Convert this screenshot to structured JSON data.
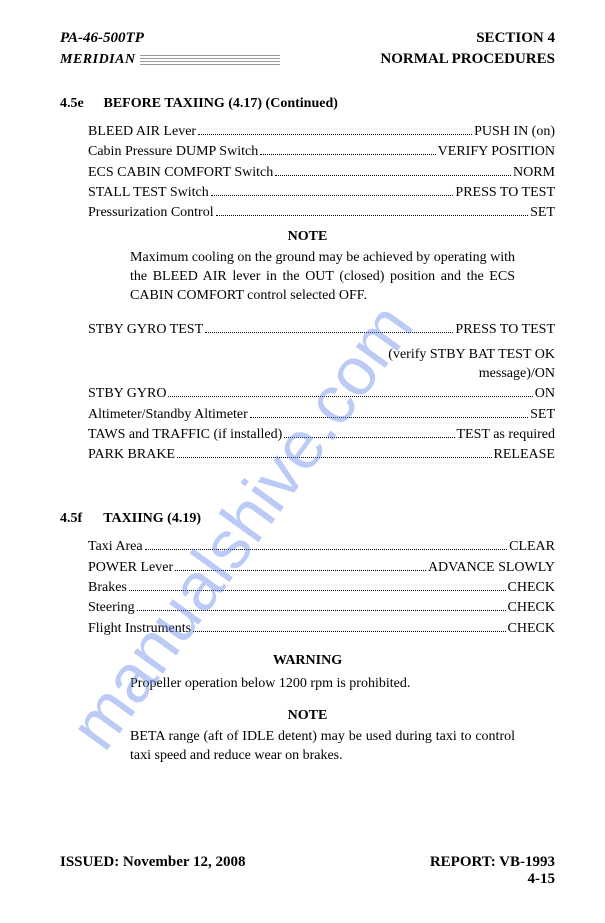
{
  "header": {
    "model": "PA-46-500TP",
    "section": "SECTION 4",
    "brand": "MERIDIAN",
    "subtitle": "NORMAL PROCEDURES"
  },
  "section_4_5e": {
    "number": "4.5e",
    "title": "BEFORE TAXIING (4.17) (Continued)",
    "items1": [
      {
        "label": "BLEED AIR Lever",
        "value": "PUSH IN (on)"
      },
      {
        "label": "Cabin Pressure DUMP Switch",
        "value": "VERIFY POSITION"
      },
      {
        "label": "ECS CABIN COMFORT Switch",
        "value": "NORM"
      },
      {
        "label": "STALL TEST Switch",
        "value": "PRESS TO TEST"
      },
      {
        "label": "Pressurization Control",
        "value": "SET"
      }
    ],
    "note1_title": "NOTE",
    "note1_body": "Maximum cooling on the ground may be achieved by operating with the BLEED AIR lever in the OUT (closed) position and the ECS CABIN COMFORT control selected OFF.",
    "items2a": [
      {
        "label": "STBY GYRO TEST",
        "value": "PRESS TO TEST"
      }
    ],
    "continuation1": "(verify STBY BAT TEST OK",
    "continuation2": "message)/ON",
    "items2b": [
      {
        "label": "STBY GYRO",
        "value": "ON"
      },
      {
        "label": "Altimeter/Standby Altimeter",
        "value": "SET"
      },
      {
        "label": "TAWS and TRAFFIC (if installed)",
        "value": "TEST as required"
      },
      {
        "label": "PARK BRAKE",
        "value": "RELEASE"
      }
    ]
  },
  "section_4_5f": {
    "number": "4.5f",
    "title": "TAXIING (4.19)",
    "items": [
      {
        "label": "Taxi Area",
        "value": "CLEAR"
      },
      {
        "label": "POWER Lever",
        "value": "ADVANCE SLOWLY"
      },
      {
        "label": "Brakes",
        "value": "CHECK"
      },
      {
        "label": "Steering",
        "value": "CHECK"
      },
      {
        "label": "Flight Instruments",
        "value": "CHECK"
      }
    ],
    "warning_title": "WARNING",
    "warning_body": "Propeller operation below 1200 rpm is prohibited.",
    "note_title": "NOTE",
    "note_body": "BETA range (aft of IDLE detent) may be used during taxi to control taxi speed and reduce wear on brakes."
  },
  "footer": {
    "issued": "ISSUED: November 12, 2008",
    "report": "REPORT: VB-1993",
    "page": "4-15"
  },
  "watermark": {
    "text": "manualshive.com",
    "color": "#6b8be8",
    "opacity": 0.45,
    "fontsize": 68
  }
}
